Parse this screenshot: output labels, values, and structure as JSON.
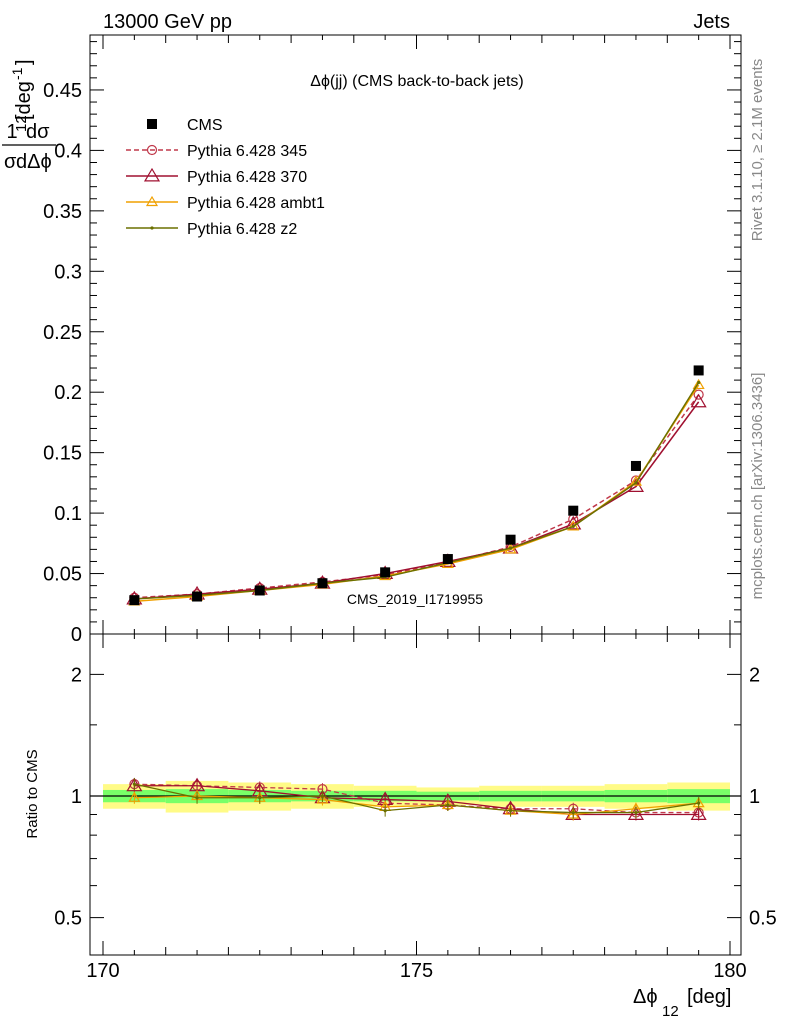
{
  "header": {
    "left": "13000 GeV pp",
    "right": "Jets"
  },
  "side_labels": {
    "rivet": "Rivet 3.1.10, ≥ 2.1M events",
    "mcplots": "mcplots.cern.ch [arXiv:1306.3436]"
  },
  "chart_data": [
    {
      "type": "line",
      "title": "Δϕ(jj) (CMS back-to-back jets)",
      "watermark": "CMS_2019_I1719955",
      "xlabel": "Δϕ",
      "xlabel_sub": "12",
      "xlabel_unit": "[deg]",
      "ylabel_frac_num": "1",
      "ylabel_frac_num2": "dσ",
      "ylabel_frac_den": "σ",
      "ylabel_frac_den2": "dΔϕ",
      "ylabel_sub": "12",
      "ylabel_unit": "[deg",
      "ylabel_unit_sup": "-1",
      "ylabel_unit_close": "]",
      "xlim": [
        170,
        180
      ],
      "ylim": [
        0,
        0.5
      ],
      "x_ticks": [
        "170",
        "175",
        "180"
      ],
      "y_ticks": [
        "0",
        "0.05",
        "0.1",
        "0.15",
        "0.2",
        "0.25",
        "0.3",
        "0.35",
        "0.4",
        "0.45"
      ],
      "legend_position": "top-left",
      "x": [
        170.5,
        171.5,
        172.5,
        173.5,
        174.5,
        175.5,
        176.5,
        177.5,
        178.5,
        179.5
      ],
      "series": [
        {
          "name": "CMS",
          "color": "#000000",
          "values": [
            0.028,
            0.031,
            0.036,
            0.042,
            0.051,
            0.062,
            0.078,
            0.102,
            0.139,
            0.218
          ]
        },
        {
          "name": "Pythia 6.428 345",
          "color": "#c0384a",
          "values": [
            0.03,
            0.033,
            0.038,
            0.043,
            0.049,
            0.059,
            0.072,
            0.095,
            0.127,
            0.198
          ]
        },
        {
          "name": "Pythia 6.428 370",
          "color": "#a01030",
          "values": [
            0.029,
            0.033,
            0.037,
            0.042,
            0.05,
            0.06,
            0.071,
            0.091,
            0.122,
            0.192
          ]
        },
        {
          "name": "Pythia 6.428 ambt1",
          "color": "#f0a000",
          "values": [
            0.027,
            0.031,
            0.036,
            0.041,
            0.048,
            0.058,
            0.07,
            0.089,
            0.126,
            0.206
          ]
        },
        {
          "name": "Pythia 6.428 z2",
          "color": "#6b7000",
          "values": [
            0.029,
            0.032,
            0.036,
            0.042,
            0.047,
            0.059,
            0.071,
            0.089,
            0.125,
            0.208
          ]
        }
      ]
    },
    {
      "type": "line",
      "ylabel": "Ratio to CMS",
      "xlim": [
        170,
        180
      ],
      "ylim": [
        0.4,
        2.4
      ],
      "y_scale": "log",
      "y_ticks": [
        "0.5",
        "1",
        "2"
      ],
      "reference": 1,
      "band_colors": [
        "#fffb87",
        "#79ff68"
      ],
      "x": [
        170.5,
        171.5,
        172.5,
        173.5,
        174.5,
        175.5,
        176.5,
        177.5,
        178.5,
        179.5
      ],
      "series": [
        {
          "name": "Pythia 6.428 345",
          "color": "#c0384a",
          "values": [
            1.07,
            1.06,
            1.05,
            1.04,
            0.96,
            0.95,
            0.93,
            0.93,
            0.91,
            0.91
          ]
        },
        {
          "name": "Pythia 6.428 370",
          "color": "#a01030",
          "values": [
            1.06,
            1.06,
            1.03,
            0.99,
            0.98,
            0.97,
            0.93,
            0.9,
            0.9,
            0.9
          ]
        },
        {
          "name": "Pythia 6.428 ambt1",
          "color": "#f0a000",
          "values": [
            0.99,
            1.0,
            0.99,
            0.98,
            0.94,
            0.95,
            0.92,
            0.9,
            0.93,
            0.96
          ]
        },
        {
          "name": "Pythia 6.428 z2",
          "color": "#6b7000",
          "values": [
            1.07,
            0.99,
            0.99,
            1.0,
            0.92,
            0.95,
            0.92,
            0.91,
            0.91,
            0.96
          ]
        }
      ]
    }
  ]
}
